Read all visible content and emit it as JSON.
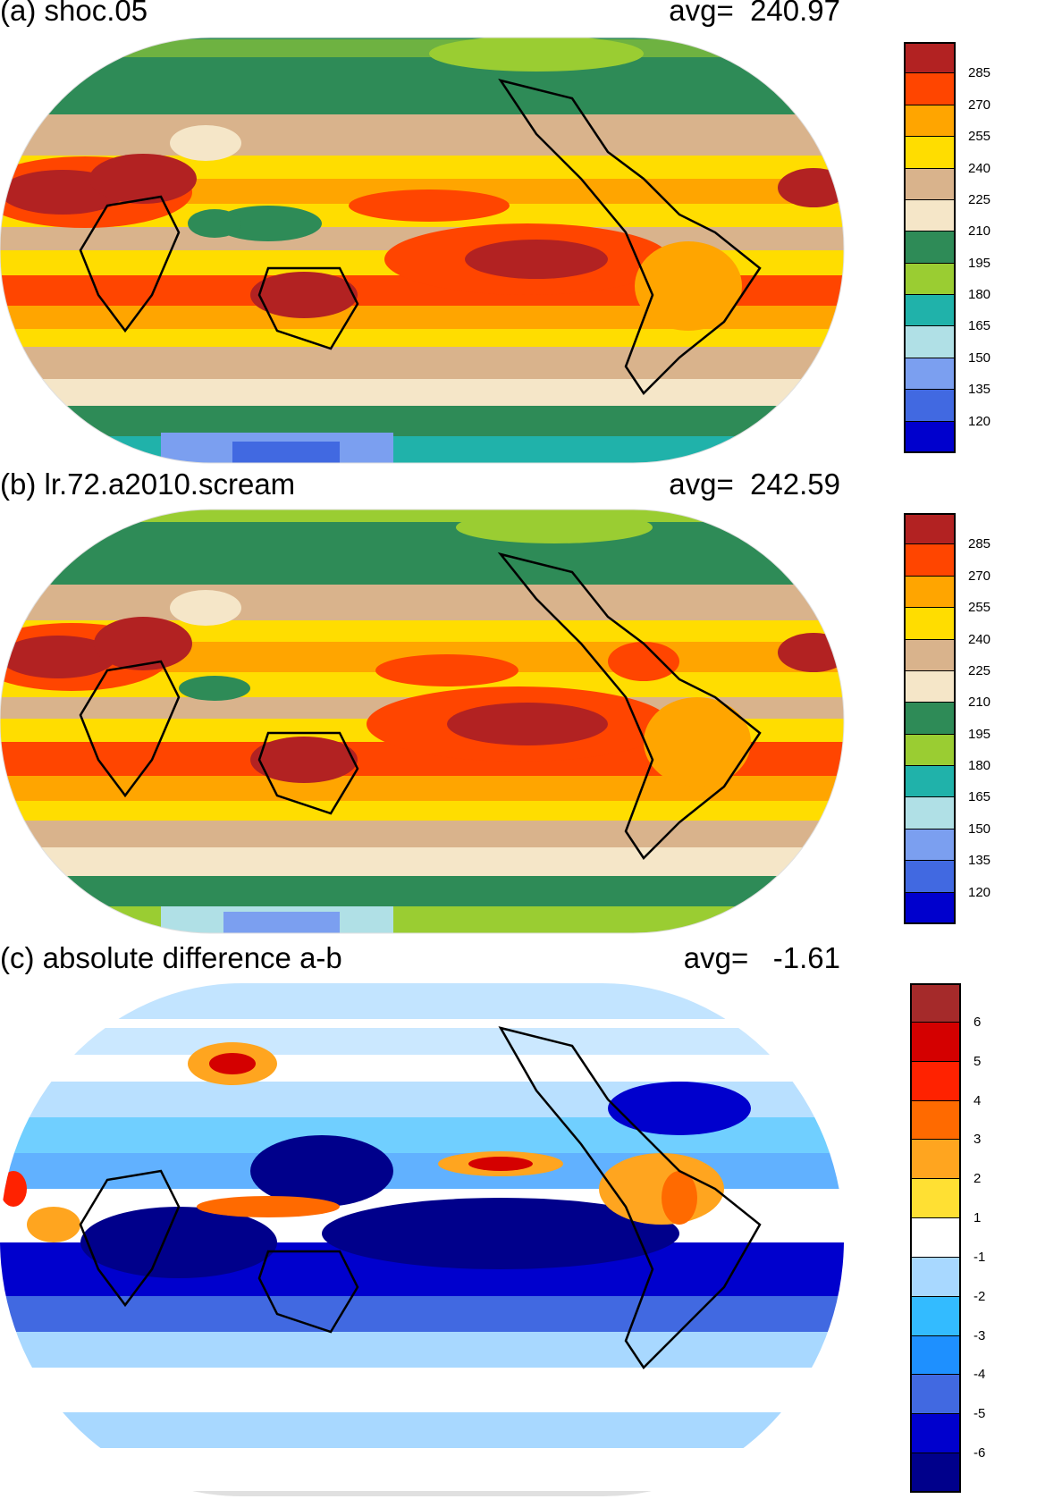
{
  "panels": [
    {
      "title": "(a) shoc.05",
      "avg": "avg=  240.97",
      "colorbar": {
        "levels": [
          "285",
          "270",
          "255",
          "240",
          "225",
          "210",
          "195",
          "180",
          "165",
          "150",
          "135",
          "120"
        ],
        "colors": [
          "#b22222",
          "#ff4500",
          "#ffa500",
          "#ffdd00",
          "#d9b38c",
          "#f5e6c8",
          "#2e8b57",
          "#9acd32",
          "#20b2aa",
          "#b0e0e6",
          "#7b9ff0",
          "#4169e1",
          "#0000cd"
        ]
      }
    },
    {
      "title": "(b) lr.72.a2010.scream",
      "avg": "avg=  242.59",
      "colorbar": {
        "levels": [
          "285",
          "270",
          "255",
          "240",
          "225",
          "210",
          "195",
          "180",
          "165",
          "150",
          "135",
          "120"
        ],
        "colors": [
          "#b22222",
          "#ff4500",
          "#ffa500",
          "#ffdd00",
          "#d9b38c",
          "#f5e6c8",
          "#2e8b57",
          "#9acd32",
          "#20b2aa",
          "#b0e0e6",
          "#7b9ff0",
          "#4169e1",
          "#0000cd"
        ]
      }
    },
    {
      "title": "(c) absolute difference a-b",
      "avg": "avg=   -1.61",
      "colorbar": {
        "levels": [
          "6",
          "5",
          "4",
          "3",
          "2",
          "1",
          "-1",
          "-2",
          "-3",
          "-4",
          "-5",
          "-6"
        ],
        "colors": [
          "#a52a2a",
          "#d40000",
          "#ff2200",
          "#ff6a00",
          "#ffa51f",
          "#ffe033",
          "#ffffff",
          "#a8d8ff",
          "#33bbff",
          "#1e90ff",
          "#4169e1",
          "#0000cd",
          "#00008b"
        ]
      }
    }
  ]
}
